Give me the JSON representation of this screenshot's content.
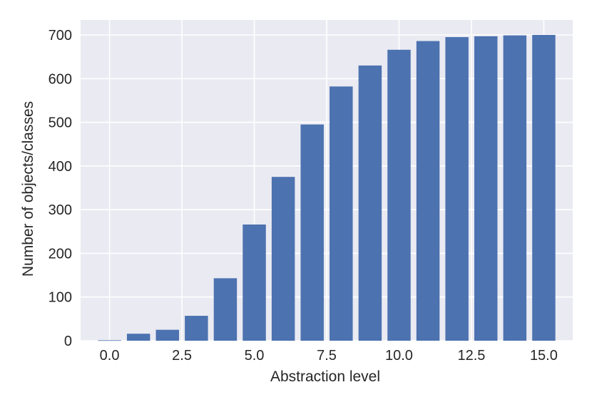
{
  "chart_data": {
    "type": "bar",
    "x": [
      0,
      1,
      2,
      3,
      4,
      5,
      6,
      7,
      8,
      9,
      10,
      11,
      12,
      13,
      14,
      15
    ],
    "values": [
      1,
      16,
      25,
      57,
      143,
      266,
      375,
      495,
      582,
      630,
      666,
      686,
      695,
      697,
      699,
      700
    ],
    "xlabel": "Abstraction level",
    "ylabel": "Number of objects/classes",
    "xlim": [
      -1,
      16
    ],
    "ylim": [
      0,
      700
    ],
    "xticks": [
      0.0,
      2.5,
      5.0,
      7.5,
      10.0,
      12.5,
      15.0
    ],
    "xtick_labels": [
      "0.0",
      "2.5",
      "5.0",
      "7.5",
      "10.0",
      "12.5",
      "15.0"
    ],
    "yticks": [
      0,
      100,
      200,
      300,
      400,
      500,
      600,
      700
    ],
    "ytick_labels": [
      "0",
      "100",
      "200",
      "300",
      "400",
      "500",
      "600",
      "700"
    ],
    "grid": true,
    "colors": {
      "bar": "#4c72b0",
      "plot_background": "#eaeaf2",
      "grid": "#ffffff"
    }
  }
}
